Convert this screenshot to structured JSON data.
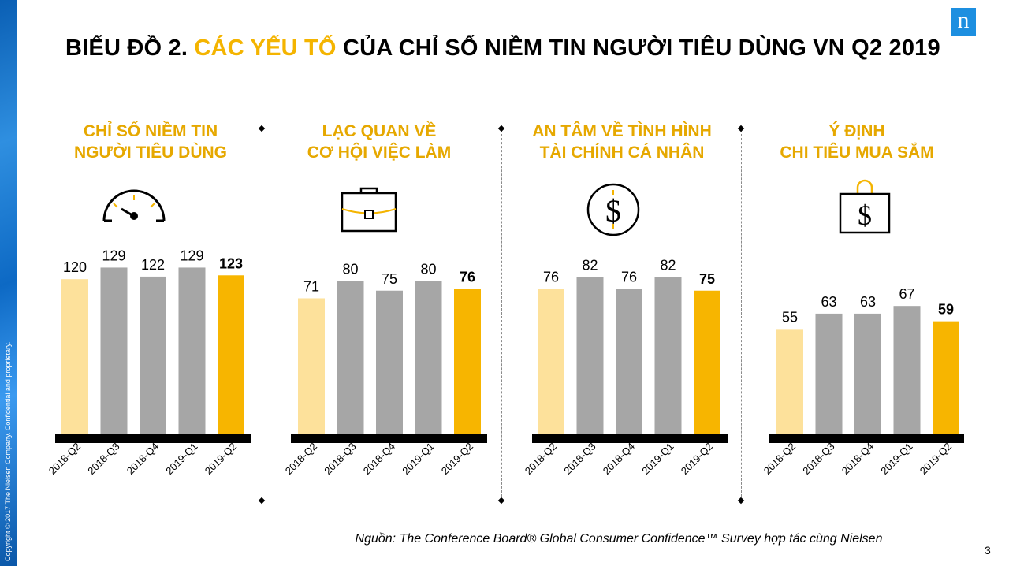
{
  "slide": {
    "title_part1": "BIỂU ĐỒ 2.",
    "title_highlight": "CÁC YẾU TỐ",
    "title_part2": "CỦA CHỈ SỐ NIỀM TIN NGƯỜI TIÊU DÙNG VN Q2 2019",
    "logo_letter": "n",
    "copyright": "Copyright © 2017 The Nielsen Company. Confidential and proprietary.",
    "source": "Nguồn: The Conference Board® Global Consumer Confidence™ Survey hợp tác cùng  Nielsen",
    "page_number": "3",
    "colors": {
      "highlight": "#f4b400",
      "past": "#fde19b",
      "mid": "#a6a6a6",
      "current": "#f7b500",
      "baseline": "#000000"
    }
  },
  "panels": [
    {
      "title_line1": "CHỈ SỐ NIỀM TIN",
      "title_line2": "NGƯỜI TIÊU DÙNG",
      "icon": "speedometer-icon"
    },
    {
      "title_line1": "LẠC QUAN VỀ",
      "title_line2": "CƠ HỘI VIỆC LÀM",
      "icon": "briefcase-icon"
    },
    {
      "title_line1": "AN TÂM VỀ TÌNH HÌNH",
      "title_line2": "TÀI CHÍNH CÁ NHÂN",
      "icon": "dollar-coin-icon"
    },
    {
      "title_line1": "Ý ĐỊNH",
      "title_line2": "CHI TIÊU MUA SẮM",
      "icon": "shopping-bag-dollar-icon"
    }
  ],
  "chart_data": [
    {
      "type": "bar",
      "categories": [
        "2018-Q2",
        "2018-Q3",
        "2018-Q4",
        "2019-Q1",
        "2019-Q2"
      ],
      "values": [
        120,
        129,
        122,
        129,
        123
      ],
      "data_labels": [
        "120",
        "129",
        "122",
        "129",
        "123"
      ]
    },
    {
      "type": "bar",
      "categories": [
        "2018-Q2",
        "2018-Q3",
        "2018-Q4",
        "2019-Q1",
        "2019-Q2"
      ],
      "values": [
        71,
        80,
        75,
        80,
        76
      ],
      "data_labels": [
        "71",
        "80",
        "75",
        "80",
        "76"
      ]
    },
    {
      "type": "bar",
      "categories": [
        "2018-Q2",
        "2018-Q3",
        "2018-Q4",
        "2019-Q1",
        "2019-Q2"
      ],
      "values": [
        76,
        82,
        76,
        82,
        75
      ],
      "data_labels": [
        "76",
        "82",
        "76",
        "82",
        "75"
      ]
    },
    {
      "type": "bar",
      "categories": [
        "2018-Q2",
        "2018-Q3",
        "2018-Q4",
        "2019-Q1",
        "2019-Q2"
      ],
      "values": [
        55,
        63,
        63,
        67,
        59
      ],
      "data_labels": [
        "55",
        "63",
        "63",
        "67",
        "59"
      ]
    }
  ]
}
